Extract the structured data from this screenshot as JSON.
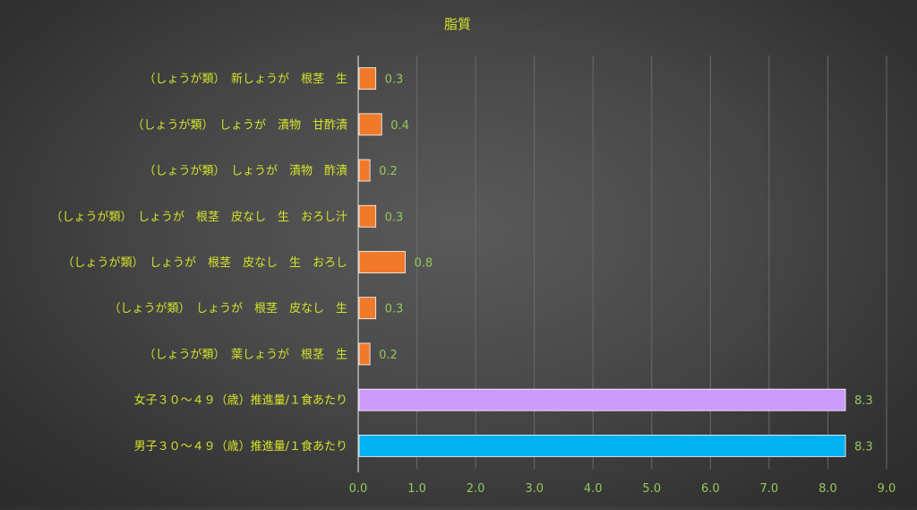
{
  "chart_data": {
    "type": "bar",
    "orientation": "horizontal",
    "title": "脂質",
    "xlabel": "",
    "ylabel": "",
    "xlim": [
      0,
      9
    ],
    "ticks": [
      "0.0",
      "1.0",
      "2.0",
      "3.0",
      "4.0",
      "5.0",
      "6.0",
      "7.0",
      "8.0",
      "9.0"
    ],
    "grid": true,
    "legend": "none",
    "categories": [
      "（しょうが類）　新しょうが　根茎　生",
      "（しょうが類）　しょうが　漬物　甘酢漬",
      "（しょうが類）　しょうが　漬物　酢漬",
      "（しょうが類）　しょうが　根茎　皮なし　生　おろし汁",
      "（しょうが類）　しょうが　根茎　皮なし　生　おろし",
      "（しょうが類）　しょうが　根茎　皮なし　生",
      "（しょうが類）　葉しょうが　根茎　生",
      "女子３０～４９（歳）推進量/１食あたり",
      "男子３０～４９（歳）推進量/１食あたり"
    ],
    "values": [
      0.3,
      0.4,
      0.2,
      0.3,
      0.8,
      0.3,
      0.2,
      8.3,
      8.3
    ],
    "data_labels": [
      "0.3",
      "0.4",
      "0.2",
      "0.3",
      "0.8",
      "0.3",
      "0.2",
      "8.3",
      "8.3"
    ],
    "colors": [
      "#f07a2a",
      "#f07a2a",
      "#f07a2a",
      "#f07a2a",
      "#f07a2a",
      "#f07a2a",
      "#f07a2a",
      "#cc99ff",
      "#00b0f0"
    ],
    "text_color": "#d4e22a",
    "tick_color": "#92c85a",
    "grid_color": "#6a6a6a"
  }
}
